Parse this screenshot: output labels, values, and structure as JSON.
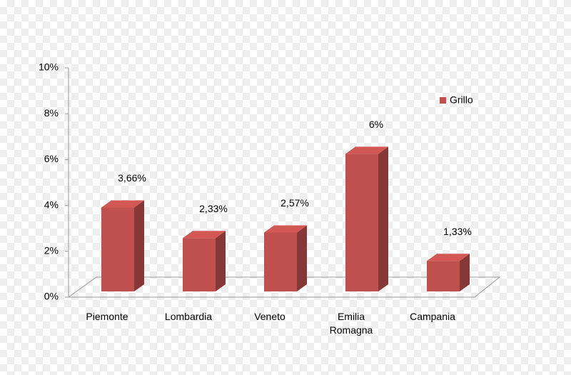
{
  "chart_data": {
    "type": "bar3d",
    "categories": [
      "Piemonte",
      "Lombardia",
      "Veneto",
      "Emilia Romagna",
      "Campania"
    ],
    "series": [
      {
        "name": "Grillo",
        "color": "#c0504d",
        "values": [
          3.66,
          2.33,
          2.57,
          6,
          1.33
        ],
        "value_labels": [
          "3,66%",
          "2,33%",
          "2,57%",
          "6%",
          "1,33%"
        ]
      }
    ],
    "ylim": [
      0,
      10
    ],
    "yticks": [
      {
        "value": 0,
        "label": "0%"
      },
      {
        "value": 2,
        "label": "2%"
      },
      {
        "value": 4,
        "label": "4%"
      },
      {
        "value": 6,
        "label": "6%"
      },
      {
        "value": 8,
        "label": "8%"
      },
      {
        "value": 10,
        "label": "10%"
      }
    ],
    "legend": "right"
  }
}
